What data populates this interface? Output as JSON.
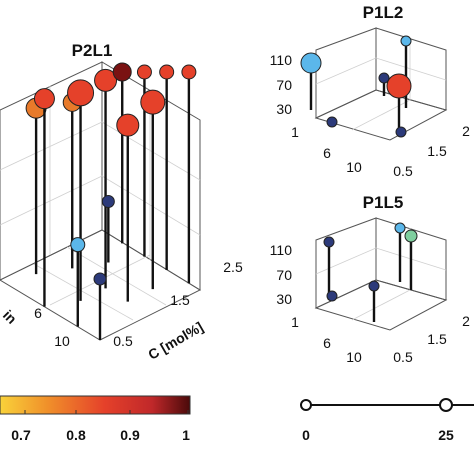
{
  "chart_data": [
    {
      "type": "scatter",
      "title": "P2L1",
      "xlabel": "C [mol%]",
      "ylabel": "in",
      "x_ticks": [
        "0.5",
        "1.5",
        "2.5"
      ],
      "y_ticks": [
        "6",
        "10"
      ],
      "points": [
        {
          "c": 1.0,
          "t": 2,
          "v": 0.6,
          "color": "#e87a2a",
          "s": 10
        },
        {
          "c": 1.5,
          "t": 3,
          "v": 0.6,
          "color": "#e87a2a",
          "s": 9
        },
        {
          "c": 0.5,
          "t": 5,
          "v": 0.8,
          "color": "#e5412a",
          "s": 10
        },
        {
          "c": 1.0,
          "t": 6,
          "v": 0.8,
          "color": "#e5412a",
          "s": 13
        },
        {
          "c": 1.5,
          "t": 6,
          "v": 0.8,
          "color": "#e5412a",
          "s": 11
        },
        {
          "c": 2.0,
          "t": 4,
          "v": 0.1,
          "color": "#2c3a7a",
          "s": 6
        },
        {
          "c": 2.5,
          "t": 3,
          "v": 1.0,
          "color": "#7a1212",
          "s": 9
        },
        {
          "c": 2.5,
          "t": 5,
          "v": 0.85,
          "color": "#e5412a",
          "s": 7
        },
        {
          "c": 0.5,
          "t": 8,
          "v": 0.2,
          "color": "#5bb7ea",
          "s": 7
        },
        {
          "c": 1.5,
          "t": 8,
          "v": 0.65,
          "color": "#e5412a",
          "s": 11
        },
        {
          "c": 2.0,
          "t": 8,
          "v": 0.7,
          "color": "#e5412a",
          "s": 12
        },
        {
          "c": 2.5,
          "t": 7,
          "v": 0.9,
          "color": "#e5412a",
          "s": 7
        },
        {
          "c": 2.5,
          "t": 9,
          "v": 0.85,
          "color": "#e5412a",
          "s": 7
        },
        {
          "c": 0.5,
          "t": 10,
          "v": 0.1,
          "color": "#2c3a7a",
          "s": 6
        }
      ]
    },
    {
      "type": "scatter",
      "title": "P1L2",
      "z_ticks": [
        "110",
        "70",
        "30"
      ],
      "t_ticks": [
        "1",
        "6",
        "10"
      ],
      "c_ticks": [
        "0.5",
        "1.5",
        "2"
      ]
    },
    {
      "type": "scatter",
      "title": "P1L5",
      "z_ticks": [
        "110",
        "70",
        "30"
      ],
      "t_ticks": [
        "1",
        "6",
        "10"
      ],
      "c_ticks": [
        "0.5",
        "1.5",
        "2"
      ]
    }
  ],
  "colorbar": {
    "ticks": [
      "0.7",
      "0.8",
      "0.9",
      "1"
    ]
  },
  "size_legend": {
    "ticks": [
      "0",
      "25"
    ]
  }
}
